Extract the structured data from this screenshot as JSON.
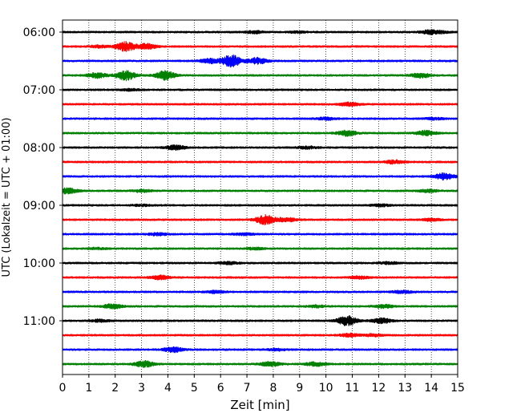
{
  "chart_data": {
    "type": "line",
    "title": "",
    "xlabel": "Zeit  [min]",
    "ylabel": "UTC (Lokalzeit = UTC + 01:00)",
    "xlim": [
      0,
      15
    ],
    "x_ticks": [
      "0",
      "1",
      "2",
      "3",
      "4",
      "5",
      "6",
      "7",
      "8",
      "9",
      "10",
      "11",
      "12",
      "13",
      "14",
      "15"
    ],
    "y_ticks": [
      "06:00",
      "07:00",
      "08:00",
      "09:00",
      "10:00",
      "11:00"
    ],
    "grid": "vertical dotted lines at each minute",
    "trace_interval_minutes": 15,
    "colors": [
      "#000000",
      "#ff0000",
      "#0000ff",
      "#008000"
    ],
    "traces": [
      {
        "start": "06:00",
        "color": "#000000",
        "events": [
          [
            7.3,
            0.6
          ],
          [
            8.9,
            0.4
          ],
          [
            13.9,
            0.8
          ],
          [
            14.3,
            0.6
          ]
        ]
      },
      {
        "start": "06:15",
        "color": "#ff0000",
        "events": [
          [
            2.4,
            2.5
          ],
          [
            3.2,
            1.4
          ],
          [
            1.4,
            0.6
          ]
        ]
      },
      {
        "start": "06:30",
        "color": "#0000ff",
        "events": [
          [
            6.4,
            3.2
          ],
          [
            7.4,
            1.6
          ],
          [
            5.6,
            1.2
          ]
        ]
      },
      {
        "start": "06:45",
        "color": "#008000",
        "events": [
          [
            2.4,
            2.6
          ],
          [
            3.9,
            2.4
          ],
          [
            1.3,
            1.4
          ],
          [
            13.6,
            1.2
          ]
        ]
      },
      {
        "start": "07:00",
        "color": "#000000",
        "events": [
          [
            2.6,
            0.4
          ]
        ]
      },
      {
        "start": "07:15",
        "color": "#ff0000",
        "events": [
          [
            10.9,
            0.9
          ]
        ]
      },
      {
        "start": "07:30",
        "color": "#0000ff",
        "events": [
          [
            10.0,
            0.6
          ],
          [
            14.1,
            0.5
          ]
        ]
      },
      {
        "start": "07:45",
        "color": "#008000",
        "events": [
          [
            10.8,
            1.4
          ],
          [
            13.8,
            1.3
          ]
        ]
      },
      {
        "start": "08:00",
        "color": "#000000",
        "events": [
          [
            4.3,
            1.2
          ],
          [
            9.3,
            0.6
          ]
        ]
      },
      {
        "start": "08:15",
        "color": "#ff0000",
        "events": [
          [
            12.6,
            0.9
          ]
        ]
      },
      {
        "start": "08:30",
        "color": "#0000ff",
        "events": [
          [
            14.5,
            1.8
          ]
        ]
      },
      {
        "start": "08:45",
        "color": "#008000",
        "events": [
          [
            0.2,
            1.4
          ],
          [
            3.0,
            0.6
          ],
          [
            13.9,
            0.7
          ]
        ]
      },
      {
        "start": "09:00",
        "color": "#000000",
        "events": [
          [
            3.0,
            0.4
          ],
          [
            12.1,
            0.5
          ]
        ]
      },
      {
        "start": "09:15",
        "color": "#ff0000",
        "events": [
          [
            7.7,
            2.6
          ],
          [
            8.5,
            1.0
          ],
          [
            14.0,
            0.6
          ]
        ]
      },
      {
        "start": "09:30",
        "color": "#0000ff",
        "events": [
          [
            3.6,
            0.6
          ],
          [
            6.9,
            0.5
          ]
        ]
      },
      {
        "start": "09:45",
        "color": "#008000",
        "events": [
          [
            1.3,
            0.4
          ],
          [
            7.3,
            0.5
          ]
        ]
      },
      {
        "start": "10:00",
        "color": "#000000",
        "events": [
          [
            6.3,
            0.6
          ],
          [
            12.4,
            0.5
          ]
        ]
      },
      {
        "start": "10:15",
        "color": "#ff0000",
        "events": [
          [
            3.7,
            1.0
          ],
          [
            11.3,
            0.6
          ]
        ]
      },
      {
        "start": "10:30",
        "color": "#0000ff",
        "events": [
          [
            5.8,
            0.6
          ],
          [
            12.9,
            0.7
          ]
        ]
      },
      {
        "start": "10:45",
        "color": "#008000",
        "events": [
          [
            1.9,
            1.2
          ],
          [
            9.6,
            0.6
          ],
          [
            12.2,
            0.9
          ]
        ]
      },
      {
        "start": "11:00",
        "color": "#000000",
        "events": [
          [
            10.8,
            2.6
          ],
          [
            12.1,
            1.3
          ],
          [
            1.4,
            0.6
          ]
        ]
      },
      {
        "start": "11:15",
        "color": "#ff0000",
        "events": [
          [
            10.9,
            0.8
          ],
          [
            11.8,
            0.6
          ]
        ]
      },
      {
        "start": "11:30",
        "color": "#0000ff",
        "events": [
          [
            4.2,
            1.3
          ],
          [
            8.1,
            0.5
          ]
        ]
      },
      {
        "start": "11:45",
        "color": "#008000",
        "events": [
          [
            3.1,
            1.6
          ],
          [
            7.9,
            1.2
          ],
          [
            9.6,
            1.0
          ]
        ]
      }
    ]
  }
}
